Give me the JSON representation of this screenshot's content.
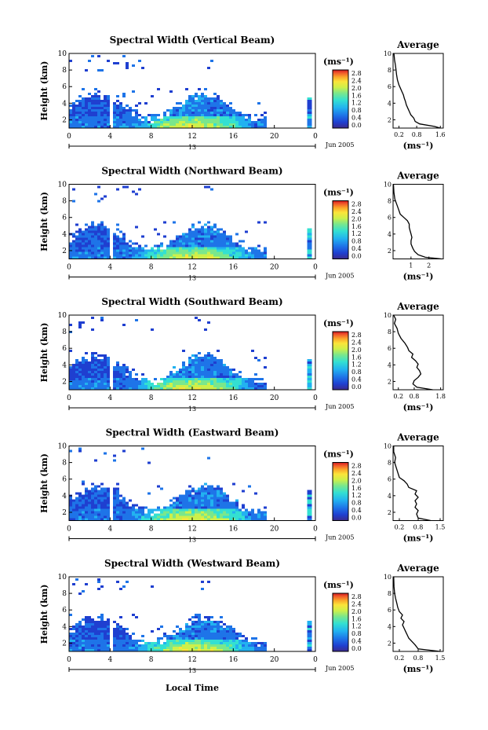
{
  "figure": {
    "xlabel": "Local Time"
  },
  "panels": [
    {
      "title": "Spectral Width (Vertical Beam)",
      "avg_xticks": [
        "0.2",
        "0.8",
        "1.6"
      ],
      "avg_xmin": 0.0,
      "avg_xmax": 1.7,
      "avg_profile": [
        [
          1.6,
          1.0
        ],
        [
          1.4,
          1.2
        ],
        [
          0.9,
          1.5
        ],
        [
          0.75,
          1.8
        ],
        [
          0.7,
          2.2
        ],
        [
          0.6,
          2.6
        ],
        [
          0.55,
          3.0
        ],
        [
          0.5,
          3.4
        ],
        [
          0.45,
          3.8
        ],
        [
          0.42,
          4.2
        ],
        [
          0.38,
          4.6
        ],
        [
          0.35,
          5.0
        ],
        [
          0.3,
          5.4
        ],
        [
          0.25,
          5.8
        ],
        [
          0.2,
          6.2
        ],
        [
          0.15,
          6.8
        ],
        [
          0.12,
          7.4
        ],
        [
          0.1,
          8.0
        ],
        [
          0.08,
          8.6
        ],
        [
          0.05,
          9.2
        ],
        [
          0.03,
          10.0
        ]
      ]
    },
    {
      "title": "Spectral Width (Northward Beam)",
      "avg_xticks": [
        "1",
        "2"
      ],
      "avg_xmin": 0.0,
      "avg_xmax": 2.8,
      "avg_profile": [
        [
          2.7,
          1.0
        ],
        [
          1.8,
          1.2
        ],
        [
          1.4,
          1.5
        ],
        [
          1.2,
          1.9
        ],
        [
          1.1,
          2.3
        ],
        [
          1.0,
          2.8
        ],
        [
          1.0,
          3.2
        ],
        [
          1.05,
          3.6
        ],
        [
          1.0,
          4.0
        ],
        [
          0.95,
          4.4
        ],
        [
          0.9,
          4.8
        ],
        [
          0.9,
          5.2
        ],
        [
          0.8,
          5.6
        ],
        [
          0.6,
          6.0
        ],
        [
          0.4,
          6.4
        ],
        [
          0.3,
          7.0
        ],
        [
          0.2,
          7.6
        ],
        [
          0.1,
          8.2
        ],
        [
          0.05,
          9.0
        ],
        [
          0.02,
          10.0
        ]
      ]
    },
    {
      "title": "Spectral Width (Southward Beam)",
      "avg_xticks": [
        "0.2",
        "0.8",
        "1.8"
      ],
      "avg_xmin": 0.0,
      "avg_xmax": 1.9,
      "avg_profile": [
        [
          1.5,
          1.0
        ],
        [
          0.9,
          1.3
        ],
        [
          0.75,
          1.7
        ],
        [
          0.8,
          2.1
        ],
        [
          0.95,
          2.5
        ],
        [
          1.05,
          2.9
        ],
        [
          1.0,
          3.3
        ],
        [
          0.9,
          3.7
        ],
        [
          0.95,
          4.1
        ],
        [
          0.85,
          4.5
        ],
        [
          0.7,
          4.9
        ],
        [
          0.75,
          5.3
        ],
        [
          0.6,
          5.7
        ],
        [
          0.55,
          6.1
        ],
        [
          0.45,
          6.6
        ],
        [
          0.3,
          7.2
        ],
        [
          0.2,
          7.8
        ],
        [
          0.15,
          8.4
        ],
        [
          0.05,
          9.0
        ],
        [
          0.1,
          9.5
        ],
        [
          0.02,
          10.0
        ]
      ]
    },
    {
      "title": "Spectral Width (Eastward Beam)",
      "avg_xticks": [
        "0.2",
        "0.8",
        "1.5"
      ],
      "avg_xmin": 0.0,
      "avg_xmax": 1.6,
      "avg_profile": [
        [
          1.2,
          1.0
        ],
        [
          0.8,
          1.3
        ],
        [
          0.75,
          1.8
        ],
        [
          0.8,
          2.2
        ],
        [
          0.7,
          2.6
        ],
        [
          0.75,
          3.0
        ],
        [
          0.7,
          3.4
        ],
        [
          0.8,
          3.8
        ],
        [
          0.7,
          4.2
        ],
        [
          0.75,
          4.6
        ],
        [
          0.5,
          5.0
        ],
        [
          0.45,
          5.4
        ],
        [
          0.35,
          5.8
        ],
        [
          0.2,
          6.2
        ],
        [
          0.15,
          6.8
        ],
        [
          0.1,
          7.4
        ],
        [
          0.05,
          8.0
        ],
        [
          0.08,
          8.6
        ],
        [
          0.02,
          9.3
        ],
        [
          0.02,
          10.0
        ]
      ]
    },
    {
      "title": "Spectral Width (Westward Beam)",
      "avg_xticks": [
        "0.2",
        "0.8",
        "1.5"
      ],
      "avg_xmin": 0.0,
      "avg_xmax": 1.6,
      "avg_profile": [
        [
          1.5,
          1.0
        ],
        [
          0.8,
          1.3
        ],
        [
          0.7,
          1.8
        ],
        [
          0.6,
          2.2
        ],
        [
          0.5,
          2.6
        ],
        [
          0.45,
          3.0
        ],
        [
          0.4,
          3.4
        ],
        [
          0.35,
          3.8
        ],
        [
          0.3,
          4.2
        ],
        [
          0.35,
          4.6
        ],
        [
          0.25,
          5.0
        ],
        [
          0.3,
          5.4
        ],
        [
          0.2,
          5.8
        ],
        [
          0.15,
          6.3
        ],
        [
          0.12,
          6.8
        ],
        [
          0.08,
          7.4
        ],
        [
          0.05,
          8.0
        ],
        [
          0.03,
          8.8
        ],
        [
          0.02,
          10.0
        ]
      ]
    }
  ],
  "main": {
    "ylabel": "Height (km)",
    "yticks": [
      "2",
      "4",
      "6",
      "8",
      "10"
    ],
    "xticks": [
      "0",
      "4",
      "8",
      "12",
      "16",
      "20",
      "0"
    ],
    "date_ticks": [
      "13"
    ],
    "date_label": "Jun 2005"
  },
  "colorbar": {
    "unit_label": "(ms⁻¹)",
    "ticks": [
      "2.8",
      "2.4",
      "2.0",
      "1.6",
      "1.2",
      "0.8",
      "0.4",
      "0.0"
    ],
    "colors": [
      "#3b2a8c",
      "#1f3fd0",
      "#1e74e8",
      "#22b2f0",
      "#33e0d2",
      "#7ae78c",
      "#cdf04a",
      "#fbe43a",
      "#fba52a",
      "#f0582a",
      "#d01820"
    ]
  },
  "average": {
    "title": "Average",
    "yticks": [
      "2",
      "4",
      "6",
      "8",
      "10"
    ],
    "xunit": "(ms⁻¹)"
  },
  "chart_data": [
    {
      "type": "heatmap",
      "title": "Spectral Width (Vertical Beam)",
      "xlabel": "Local Time",
      "ylabel": "Height (km)",
      "xlim": [
        0,
        24
      ],
      "ylim": [
        1,
        10
      ],
      "colorbar_range": [
        0.0,
        2.8
      ],
      "unit": "ms⁻¹"
    },
    {
      "type": "line",
      "title": "Average",
      "xlabel": "(ms⁻¹)",
      "ylabel": "",
      "ylim": [
        1,
        10
      ],
      "note": "profiles per beam listed in panels[].avg_profile"
    }
  ]
}
